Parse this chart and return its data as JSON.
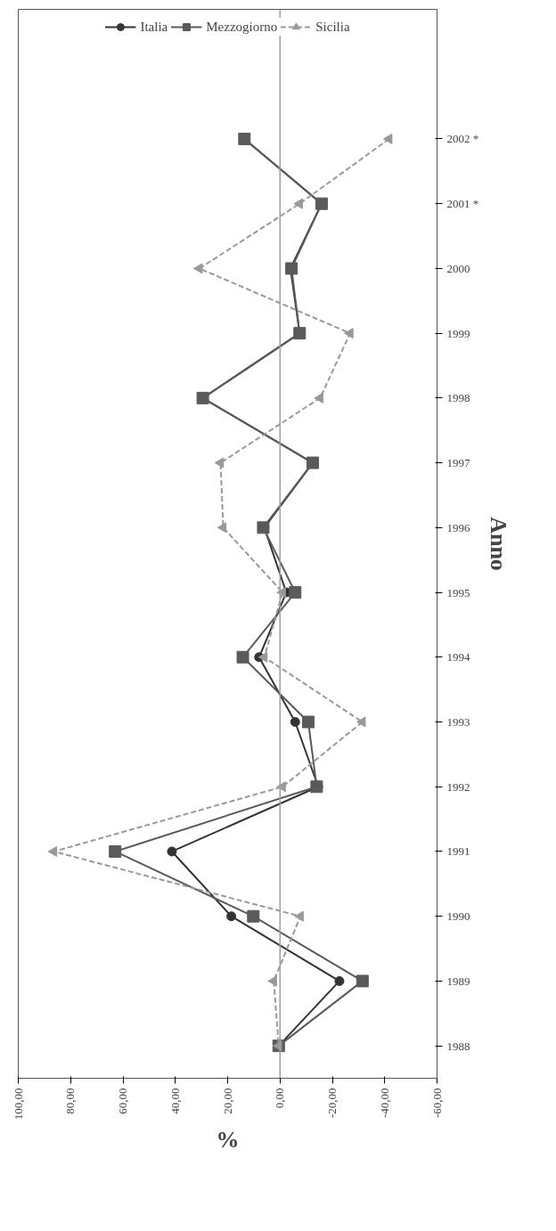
{
  "chart_data": {
    "type": "line",
    "orientation": "horizontal",
    "xlabel": "%",
    "ylabel": "Anno",
    "categories": [
      "2002 *",
      "2001 *",
      "2000",
      "1999",
      "1998",
      "1997",
      "1996",
      "1995",
      "1994",
      "1993",
      "1992",
      "1991",
      "1990",
      "1989",
      "1988"
    ],
    "xlim": [
      100,
      -60
    ],
    "xticks": [
      {
        "value": 100,
        "label": "100,00"
      },
      {
        "value": 80,
        "label": "80,00"
      },
      {
        "value": 60,
        "label": "60,00"
      },
      {
        "value": 40,
        "label": "40,00"
      },
      {
        "value": 20,
        "label": "20,00"
      },
      {
        "value": 0,
        "label": "0,00"
      },
      {
        "value": -20,
        "label": "-20,00"
      },
      {
        "value": -40,
        "label": "-40,00"
      },
      {
        "value": -60,
        "label": "-60,00"
      }
    ],
    "ref_lines": [
      {
        "axis": "x",
        "value": 0,
        "color": "#a0a0a0"
      }
    ],
    "legend": "top",
    "series": [
      {
        "name": "Italia",
        "color": "#333333",
        "marker": "circle",
        "line_style": "solid",
        "values": [
          13.6,
          -15.9,
          -4,
          -7.5,
          29.5,
          -12.5,
          6,
          -2.4,
          8,
          -5.8,
          -14.6,
          41.3,
          18.6,
          -22.7,
          0.5
        ]
      },
      {
        "name": "Mezzogiorno",
        "color": "#5a5a5a",
        "marker": "square",
        "line_style": "solid",
        "values": [
          13.6,
          -15.9,
          -4.4,
          -7.5,
          29.5,
          -12.5,
          6.4,
          -5.8,
          14.2,
          -10.8,
          -14,
          63,
          10.2,
          -31.5,
          0.5
        ]
      },
      {
        "name": "Sicilia",
        "color": "#999999",
        "marker": "triangle",
        "line_style": "dashed",
        "values": [
          -41.7,
          -7.5,
          30.8,
          -26.8,
          -15.3,
          22.7,
          21.7,
          -1,
          6,
          -31.5,
          -1,
          86.4,
          -7.8,
          2.4,
          0.5
        ]
      }
    ]
  }
}
